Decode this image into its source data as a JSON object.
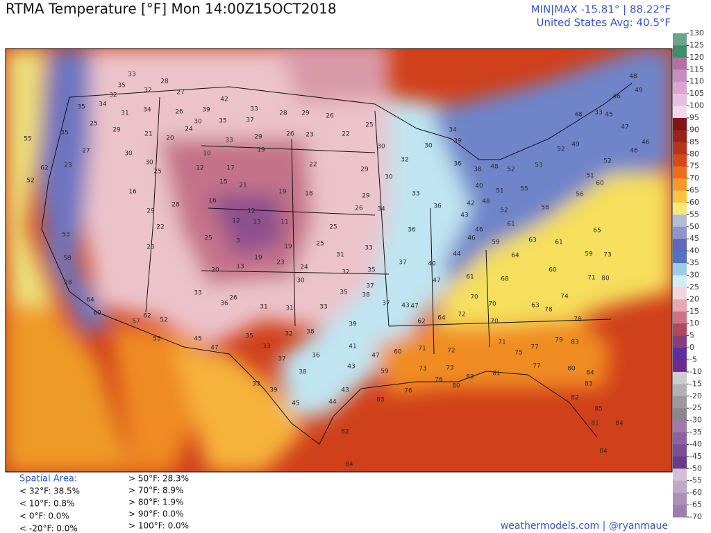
{
  "header": {
    "title": "RTMA Temperature [°F]  Mon 14:00Z15OCT2018",
    "minmax": "MIN|MAX -15.81° | 88.22°F",
    "avg": "United States Avg: 40.5°F"
  },
  "colorbar": {
    "ticks": [
      130,
      125,
      120,
      115,
      110,
      105,
      100,
      95,
      90,
      85,
      80,
      75,
      70,
      65,
      60,
      55,
      50,
      45,
      40,
      35,
      30,
      25,
      20,
      15,
      10,
      5,
      0,
      -5,
      -10,
      -15,
      -20,
      -25,
      -30,
      -35,
      -40,
      -45,
      -50,
      -55,
      -60,
      -65,
      -70
    ],
    "colors": [
      "#6aa58a",
      "#3f8c6a",
      "#b570a2",
      "#c88cbf",
      "#d9a6cf",
      "#e7c0df",
      "#f1d9ec",
      "#7e1717",
      "#9a2419",
      "#b9331b",
      "#d8461a",
      "#ee6a1c",
      "#f59a24",
      "#fac53c",
      "#f6e87a",
      "#b3bcd6",
      "#8e96cc",
      "#6068b8",
      "#5572c0",
      "#9ecbe8",
      "#d2edf5",
      "#f1d6dc",
      "#e6a8b6",
      "#cc7486",
      "#ad4a61",
      "#8a3d7c",
      "#5d2ea0",
      "#6a2c8e",
      "#cfcccf",
      "#b5b1b6",
      "#9c989d",
      "#8a868c",
      "#a07aa9",
      "#8e62a0",
      "#7c4e96",
      "#6a3a8c",
      "#d2c0d8",
      "#bfa8c8",
      "#ab90b8",
      "#9a80aa"
    ]
  },
  "stations": [
    33,
    35,
    32,
    28,
    32,
    31,
    34,
    34,
    35,
    27,
    39,
    42,
    33,
    37,
    35,
    30,
    26,
    25,
    29,
    21,
    20,
    24,
    33,
    29,
    28,
    29,
    26,
    25,
    22,
    23,
    26,
    19,
    10,
    12,
    17,
    15,
    21,
    19,
    18,
    16,
    12,
    11,
    12,
    13,
    3,
    19,
    19,
    25,
    23,
    20,
    13,
    23,
    24,
    30,
    31,
    32,
    33,
    35,
    37,
    37,
    43,
    47,
    37,
    40,
    47,
    44,
    35,
    38,
    33,
    31,
    39,
    38,
    32,
    35,
    33,
    37,
    36,
    41,
    47,
    43,
    38,
    33,
    39,
    45,
    44,
    43,
    59,
    60,
    71,
    62,
    64,
    72,
    70,
    70,
    63,
    70,
    71,
    75,
    77,
    79,
    83,
    77,
    80,
    84,
    83,
    82,
    85,
    84,
    81,
    84,
    72,
    73,
    73,
    76,
    80,
    83,
    81,
    76,
    83,
    82,
    84,
    64,
    60,
    59,
    73,
    71,
    80,
    74,
    78,
    78,
    68,
    61,
    59,
    63,
    61,
    65,
    61,
    58,
    56,
    60,
    51,
    52,
    49,
    53,
    55,
    48,
    52,
    51,
    48,
    52,
    46,
    46,
    43,
    42,
    40,
    38,
    36,
    39,
    34,
    30,
    32,
    30,
    30,
    29,
    26,
    34,
    36,
    36,
    33,
    29,
    22,
    25,
    25,
    27,
    23,
    52,
    53,
    58,
    28,
    64,
    60,
    57,
    62,
    52,
    55,
    45,
    47,
    33,
    36,
    26,
    31,
    16,
    28,
    29,
    22,
    25,
    30,
    30,
    62,
    55,
    35,
    48,
    33,
    46,
    48,
    49,
    47,
    46,
    46,
    45,
    52
  ],
  "stats": {
    "heading": "Spatial Area:",
    "left": [
      "< 32°F: 38.5%",
      "< 10°F: 0.8%",
      "< 0°F: 0.0%",
      "< -20°F: 0.0%"
    ],
    "right": [
      "> 50°F: 28.3%",
      "> 70°F: 8.9%",
      "> 80°F: 1.9%",
      "> 90°F: 0.0%",
      "> 100°F: 0.0%"
    ]
  },
  "credit": "weathermodels.com | @ryanmaue"
}
